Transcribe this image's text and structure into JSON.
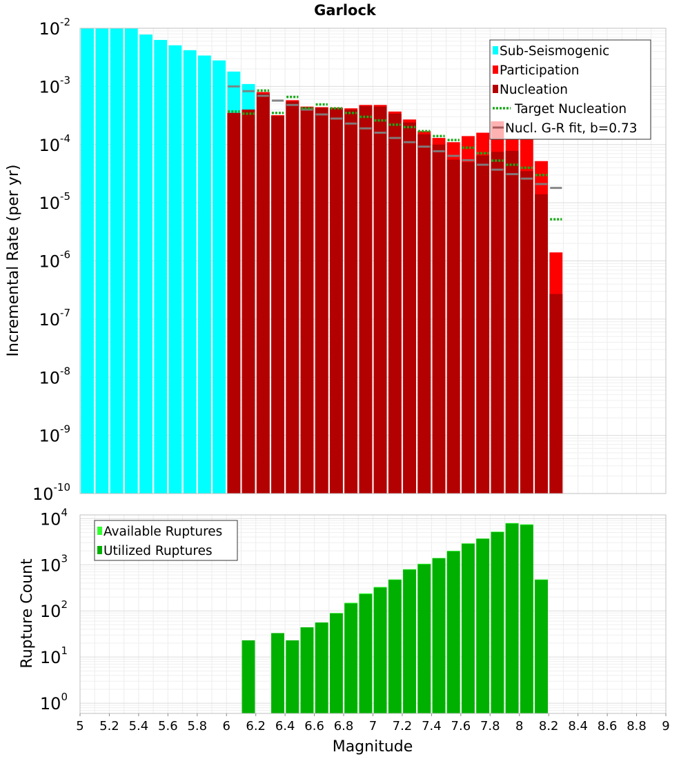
{
  "chart_data": [
    {
      "type": "bar",
      "title": "Garlock",
      "xlabel": "",
      "ylabel": "Incremental Rate (per yr)",
      "yscale": "log",
      "xlim": [
        5,
        9
      ],
      "ylim": [
        1e-10,
        0.01
      ],
      "y_tick_labels": [
        {
          "base": "10",
          "exp": "-10"
        },
        {
          "base": "10",
          "exp": "-9"
        },
        {
          "base": "10",
          "exp": "-8"
        },
        {
          "base": "10",
          "exp": "-7"
        },
        {
          "base": "10",
          "exp": "-6"
        },
        {
          "base": "10",
          "exp": "-5"
        },
        {
          "base": "10",
          "exp": "-4"
        },
        {
          "base": "10",
          "exp": "-3"
        },
        {
          "base": "10",
          "exp": "-2"
        }
      ],
      "grid": true,
      "legend_position": "top-right",
      "legend": [
        "Sub-Seismogenic",
        "Participation",
        "Nucleation",
        "Target Nucleation",
        "Nucl. G-R fit, b=0.73"
      ],
      "bin_width": 0.1,
      "series": [
        {
          "name": "Sub-Seismogenic",
          "color": "#00ffff",
          "x": [
            5.05,
            5.15,
            5.25,
            5.35,
            5.45,
            5.55,
            5.65,
            5.75,
            5.85,
            5.95,
            6.05,
            6.15,
            6.25
          ],
          "values": [
            0.0102,
            0.0102,
            0.0102,
            0.0101,
            0.0078,
            0.0063,
            0.0051,
            0.0042,
            0.0034,
            0.0028,
            0.0018,
            0.0011,
            0.0008
          ]
        },
        {
          "name": "Participation",
          "color": "#ff0000",
          "x": [
            6.05,
            6.15,
            6.25,
            6.35,
            6.45,
            6.55,
            6.65,
            6.75,
            6.85,
            6.95,
            7.05,
            7.15,
            7.25,
            7.35,
            7.45,
            7.55,
            7.65,
            7.75,
            7.85,
            7.95,
            8.05,
            8.15,
            8.25
          ],
          "values": [
            0.00035,
            0.0004,
            0.0008,
            0.00032,
            0.00058,
            0.00045,
            0.00044,
            0.00043,
            0.00042,
            0.00048,
            0.00048,
            0.00037,
            0.00027,
            0.00017,
            0.00013,
            0.00011,
            0.00014,
            0.00016,
            0.00014,
            0.00019,
            0.00015,
            5.2e-05,
            1.4e-06
          ]
        },
        {
          "name": "Nucleation",
          "color": "#b30000",
          "x": [
            6.05,
            6.15,
            6.25,
            6.35,
            6.45,
            6.55,
            6.65,
            6.75,
            6.85,
            6.95,
            7.05,
            7.15,
            7.25,
            7.35,
            7.45,
            7.55,
            7.65,
            7.75,
            7.85,
            7.95,
            8.05,
            8.15,
            8.25
          ],
          "values": [
            0.00035,
            0.0004,
            0.00075,
            0.00031,
            0.00055,
            0.00044,
            0.00043,
            0.00042,
            0.0004,
            0.00046,
            0.00045,
            0.00034,
            0.00024,
            0.00015,
            0.0001,
            5.5e-05,
            5e-05,
            6.5e-05,
            7.5e-05,
            7.8e-05,
            3.5e-05,
            1.4e-05,
            2.7e-07
          ]
        },
        {
          "name": "Target Nucleation",
          "color": "#1aaa1a",
          "x": [
            6.05,
            6.15,
            6.25,
            6.35,
            6.45,
            6.55,
            6.65,
            6.75,
            6.85,
            6.95,
            7.05,
            7.15,
            7.25,
            7.35,
            7.45,
            7.55,
            7.65,
            7.75,
            7.85,
            7.95,
            8.05,
            8.15,
            8.25
          ],
          "values": [
            0.00037,
            0.00034,
            0.00085,
            0.00035,
            0.00066,
            0.00042,
            0.00049,
            0.00042,
            0.00035,
            0.0003,
            0.00026,
            0.00022,
            0.0002,
            0.00017,
            0.00014,
            0.00012,
            8.85e-05,
            7.1e-05,
            5.3e-05,
            4.5e-05,
            4e-05,
            3e-05,
            5.2e-06
          ]
        },
        {
          "name": "Nucl. G-R fit, b=0.73",
          "color": "#808080",
          "x": [
            6.05,
            6.15,
            6.25,
            6.35,
            6.45,
            6.55,
            6.65,
            6.75,
            6.85,
            6.95,
            7.05,
            7.15,
            7.25,
            7.35,
            7.45,
            7.55,
            7.65,
            7.75,
            7.85,
            7.95,
            8.05,
            8.15,
            8.25
          ],
          "values": [
            0.001,
            0.00083,
            0.00069,
            0.00057,
            0.00048,
            0.0004,
            0.00033,
            0.00028,
            0.00023,
            0.00019,
            0.00016,
            0.00013,
            0.00011,
            9.2e-05,
            7.7e-05,
            6.4e-05,
            5.4e-05,
            4.5e-05,
            3.7e-05,
            3.1e-05,
            2.6e-05,
            2.1e-05,
            1.8e-05
          ]
        }
      ]
    },
    {
      "type": "bar",
      "title": "",
      "xlabel": "Magnitude",
      "ylabel": "Rupture Count",
      "yscale": "log",
      "xlim": [
        5,
        9
      ],
      "ylim": [
        0.6,
        12000
      ],
      "x_tick_labels": [
        "5",
        "5.2",
        "5.4",
        "5.6",
        "5.8",
        "6",
        "6.2",
        "6.4",
        "6.6",
        "6.8",
        "7",
        "7.2",
        "7.4",
        "7.6",
        "7.8",
        "8",
        "8.2",
        "8.4",
        "8.6",
        "8.8",
        "9"
      ],
      "y_tick_labels": [
        {
          "base": "10",
          "exp": "0"
        },
        {
          "base": "10",
          "exp": "1"
        },
        {
          "base": "10",
          "exp": "2"
        },
        {
          "base": "10",
          "exp": "3"
        },
        {
          "base": "10",
          "exp": "4"
        }
      ],
      "grid": true,
      "legend_position": "top-left",
      "legend": [
        "Available Ruptures",
        "Utilized Ruptures"
      ],
      "bin_width": 0.1,
      "series": [
        {
          "name": "Available Ruptures",
          "color": "#33ff33",
          "x": [
            6.15,
            6.35,
            6.45,
            6.55,
            6.65,
            6.75,
            6.85,
            6.95,
            7.05,
            7.15,
            7.25,
            7.35,
            7.45,
            7.55,
            7.65,
            7.75,
            7.85,
            7.95,
            8.05,
            8.15
          ],
          "values": [
            23,
            33,
            23,
            44,
            56,
            90,
            150,
            240,
            330,
            480,
            800,
            1050,
            1400,
            2000,
            2900,
            3700,
            5200,
            8000,
            7500,
            480
          ]
        },
        {
          "name": "Utilized Ruptures",
          "color": "#00b000",
          "x": [
            6.15,
            6.35,
            6.45,
            6.55,
            6.65,
            6.75,
            6.85,
            6.95,
            7.05,
            7.15,
            7.25,
            7.35,
            7.45,
            7.55,
            7.65,
            7.75,
            7.85,
            7.95,
            8.05,
            8.15
          ],
          "values": [
            23,
            33,
            23,
            44,
            56,
            88,
            145,
            230,
            320,
            470,
            780,
            1020,
            1380,
            1950,
            2850,
            3650,
            5100,
            7800,
            7300,
            470
          ]
        }
      ]
    }
  ]
}
